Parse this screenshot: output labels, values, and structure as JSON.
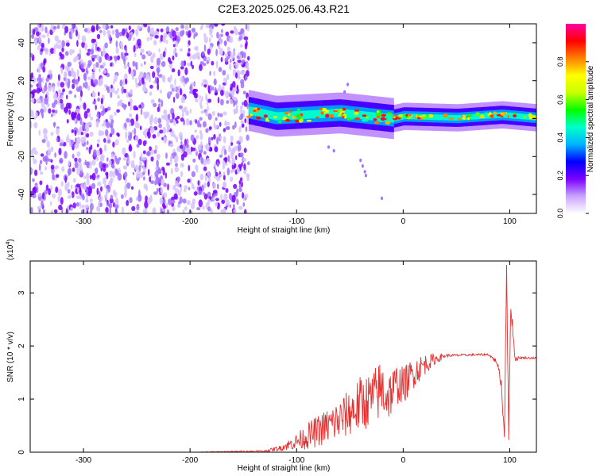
{
  "figure": {
    "title": "C2E3.2025.025.06.43.R21"
  },
  "chart_data": [
    {
      "type": "heatmap",
      "xlabel": "Height of straight line (km)",
      "ylabel": "Frequency (Hz)",
      "xlim": [
        -350,
        125
      ],
      "ylim": [
        -50,
        50
      ],
      "x_ticks": [
        -300,
        -200,
        -100,
        0,
        100
      ],
      "y_ticks": [
        -40,
        -20,
        0,
        20,
        40
      ],
      "noise_region_x": [
        -350,
        -145
      ],
      "ridge": {
        "x_start": -145,
        "x_end": 125,
        "center_frequency": 0,
        "peak_points": [
          {
            "x": -145,
            "y": 7
          },
          {
            "x": -120,
            "y": 2
          },
          {
            "x": -60,
            "y": 5
          },
          {
            "x": -30,
            "y": 2
          },
          {
            "x": -10,
            "y": 0
          },
          {
            "x": 0,
            "y": 3
          },
          {
            "x": 50,
            "y": 1
          },
          {
            "x": 92,
            "y": 5
          },
          {
            "x": 125,
            "y": 1
          }
        ]
      },
      "colorbar": {
        "label": "Normalized spectral amplitude",
        "range": [
          0,
          1
        ],
        "ticks": [
          0.0,
          0.2,
          0.4,
          0.6,
          0.8
        ],
        "colors": [
          "#ffffff",
          "#c9a2ff",
          "#7a00ff",
          "#0000ff",
          "#00b4ff",
          "#00ffc8",
          "#00ff00",
          "#c8ff00",
          "#ffff00",
          "#ff8000",
          "#ff0000",
          "#ff00a0"
        ]
      },
      "grid": false
    },
    {
      "type": "line",
      "xlabel": "Height of straight line (km)",
      "ylabel": "SNR (10 * v/v)",
      "y_multiplier": "(x10",
      "y_multiplier_exp": "4",
      "y_multiplier_close": ")",
      "xlim": [
        -350,
        125
      ],
      "ylim": [
        0,
        3.6
      ],
      "x_ticks": [
        -300,
        -200,
        -100,
        0,
        100
      ],
      "y_ticks": [
        0,
        1,
        2,
        3
      ],
      "color": "#e53030",
      "series": [
        {
          "x": [
            -350,
            -200,
            -130,
            -115,
            -100,
            -90,
            -80,
            -70,
            -60,
            -50,
            -40,
            -30,
            -25,
            -20,
            -15,
            -10,
            -5,
            0,
            10,
            20,
            30,
            40,
            60,
            80,
            88,
            92,
            95,
            97,
            99,
            101,
            105,
            110,
            125
          ],
          "y": [
            0,
            0,
            0.02,
            0.08,
            0.2,
            0.3,
            0.4,
            0.5,
            0.6,
            0.75,
            0.9,
            1.0,
            1.1,
            1.2,
            1.05,
            1.15,
            1.3,
            1.25,
            1.5,
            1.65,
            1.75,
            1.82,
            1.83,
            1.84,
            1.7,
            1.3,
            0.3,
            3.6,
            0.3,
            2.8,
            1.75,
            1.78,
            1.77
          ],
          "noise_amplitude": [
            0,
            0,
            0.02,
            0.05,
            0.15,
            0.25,
            0.3,
            0.35,
            0.4,
            0.45,
            0.55,
            0.5,
            0.55,
            0.6,
            0.5,
            0.45,
            0.4,
            0.35,
            0.3,
            0.2,
            0.1,
            0.03,
            0.02,
            0.02,
            0.05,
            0.1,
            0.2,
            0.2,
            0.2,
            0.2,
            0.05,
            0.02,
            0.02
          ]
        }
      ],
      "grid": false
    }
  ]
}
